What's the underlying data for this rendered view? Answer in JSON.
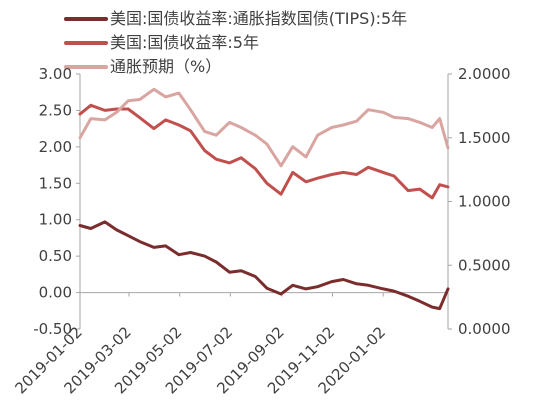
{
  "chart_data": {
    "type": "line",
    "legend_position": "top-left",
    "grid": false,
    "x_ticks": [
      "2019-01-02",
      "2019-03-02",
      "2019-05-02",
      "2019-07-02",
      "2019-09-02",
      "2019-11-02",
      "2020-01-02"
    ],
    "x_range": [
      "2019-01-02",
      "2020-03-20"
    ],
    "left_axis": {
      "ylim": [
        -0.5,
        3.0
      ],
      "ticks": [
        "-0.50",
        "0.00",
        "0.50",
        "1.00",
        "1.50",
        "2.00",
        "2.50",
        "3.00"
      ]
    },
    "right_axis": {
      "ylim": [
        0,
        2.0
      ],
      "ticks": [
        "0.0000",
        "0.5000",
        "1.0000",
        "1.5000",
        "2.0000"
      ]
    },
    "series": [
      {
        "name": "美国:国债收益率:通胀指数国债(TIPS):5年",
        "axis": "left",
        "color": "#7B2C2C",
        "points": [
          [
            "2019-01-02",
            0.92
          ],
          [
            "2019-01-15",
            0.88
          ],
          [
            "2019-02-01",
            0.97
          ],
          [
            "2019-02-15",
            0.86
          ],
          [
            "2019-03-01",
            0.78
          ],
          [
            "2019-03-15",
            0.7
          ],
          [
            "2019-04-01",
            0.62
          ],
          [
            "2019-04-15",
            0.64
          ],
          [
            "2019-05-01",
            0.52
          ],
          [
            "2019-05-15",
            0.55
          ],
          [
            "2019-06-01",
            0.5
          ],
          [
            "2019-06-15",
            0.42
          ],
          [
            "2019-07-01",
            0.28
          ],
          [
            "2019-07-15",
            0.3
          ],
          [
            "2019-08-01",
            0.22
          ],
          [
            "2019-08-15",
            0.06
          ],
          [
            "2019-09-01",
            -0.02
          ],
          [
            "2019-09-15",
            0.1
          ],
          [
            "2019-10-01",
            0.05
          ],
          [
            "2019-10-15",
            0.08
          ],
          [
            "2019-11-01",
            0.15
          ],
          [
            "2019-11-15",
            0.18
          ],
          [
            "2019-12-01",
            0.12
          ],
          [
            "2019-12-15",
            0.1
          ],
          [
            "2020-01-02",
            0.05
          ],
          [
            "2020-01-15",
            0.02
          ],
          [
            "2020-02-01",
            -0.05
          ],
          [
            "2020-02-15",
            -0.12
          ],
          [
            "2020-03-01",
            -0.2
          ],
          [
            "2020-03-10",
            -0.22
          ],
          [
            "2020-03-20",
            0.05
          ]
        ]
      },
      {
        "name": "美国:国债收益率:5年",
        "axis": "left",
        "color": "#C0504D",
        "points": [
          [
            "2019-01-02",
            2.45
          ],
          [
            "2019-01-15",
            2.57
          ],
          [
            "2019-02-01",
            2.5
          ],
          [
            "2019-02-15",
            2.52
          ],
          [
            "2019-03-01",
            2.52
          ],
          [
            "2019-03-15",
            2.4
          ],
          [
            "2019-04-01",
            2.25
          ],
          [
            "2019-04-15",
            2.37
          ],
          [
            "2019-05-01",
            2.3
          ],
          [
            "2019-05-15",
            2.22
          ],
          [
            "2019-06-01",
            1.95
          ],
          [
            "2019-06-15",
            1.83
          ],
          [
            "2019-07-01",
            1.78
          ],
          [
            "2019-07-15",
            1.85
          ],
          [
            "2019-08-01",
            1.7
          ],
          [
            "2019-08-15",
            1.5
          ],
          [
            "2019-09-01",
            1.35
          ],
          [
            "2019-09-15",
            1.65
          ],
          [
            "2019-10-01",
            1.52
          ],
          [
            "2019-10-15",
            1.57
          ],
          [
            "2019-11-01",
            1.62
          ],
          [
            "2019-11-15",
            1.65
          ],
          [
            "2019-12-01",
            1.62
          ],
          [
            "2019-12-15",
            1.72
          ],
          [
            "2020-01-02",
            1.65
          ],
          [
            "2020-01-15",
            1.6
          ],
          [
            "2020-02-01",
            1.4
          ],
          [
            "2020-02-15",
            1.42
          ],
          [
            "2020-03-01",
            1.3
          ],
          [
            "2020-03-10",
            1.48
          ],
          [
            "2020-03-20",
            1.45
          ]
        ]
      },
      {
        "name": "通胀预期（%）",
        "axis": "right",
        "color": "#D9A5A1",
        "points": [
          [
            "2019-01-02",
            1.5
          ],
          [
            "2019-01-15",
            1.65
          ],
          [
            "2019-02-01",
            1.64
          ],
          [
            "2019-02-15",
            1.7
          ],
          [
            "2019-03-01",
            1.79
          ],
          [
            "2019-03-15",
            1.8
          ],
          [
            "2019-04-01",
            1.88
          ],
          [
            "2019-04-15",
            1.82
          ],
          [
            "2019-05-01",
            1.85
          ],
          [
            "2019-05-15",
            1.72
          ],
          [
            "2019-06-01",
            1.55
          ],
          [
            "2019-06-15",
            1.52
          ],
          [
            "2019-07-01",
            1.62
          ],
          [
            "2019-07-15",
            1.58
          ],
          [
            "2019-08-01",
            1.52
          ],
          [
            "2019-08-15",
            1.45
          ],
          [
            "2019-09-01",
            1.28
          ],
          [
            "2019-09-15",
            1.43
          ],
          [
            "2019-10-01",
            1.35
          ],
          [
            "2019-10-15",
            1.52
          ],
          [
            "2019-11-01",
            1.58
          ],
          [
            "2019-11-15",
            1.6
          ],
          [
            "2019-12-01",
            1.63
          ],
          [
            "2019-12-15",
            1.72
          ],
          [
            "2020-01-02",
            1.7
          ],
          [
            "2020-01-15",
            1.66
          ],
          [
            "2020-02-01",
            1.65
          ],
          [
            "2020-02-15",
            1.62
          ],
          [
            "2020-03-01",
            1.58
          ],
          [
            "2020-03-10",
            1.65
          ],
          [
            "2020-03-20",
            1.42
          ]
        ]
      }
    ]
  }
}
